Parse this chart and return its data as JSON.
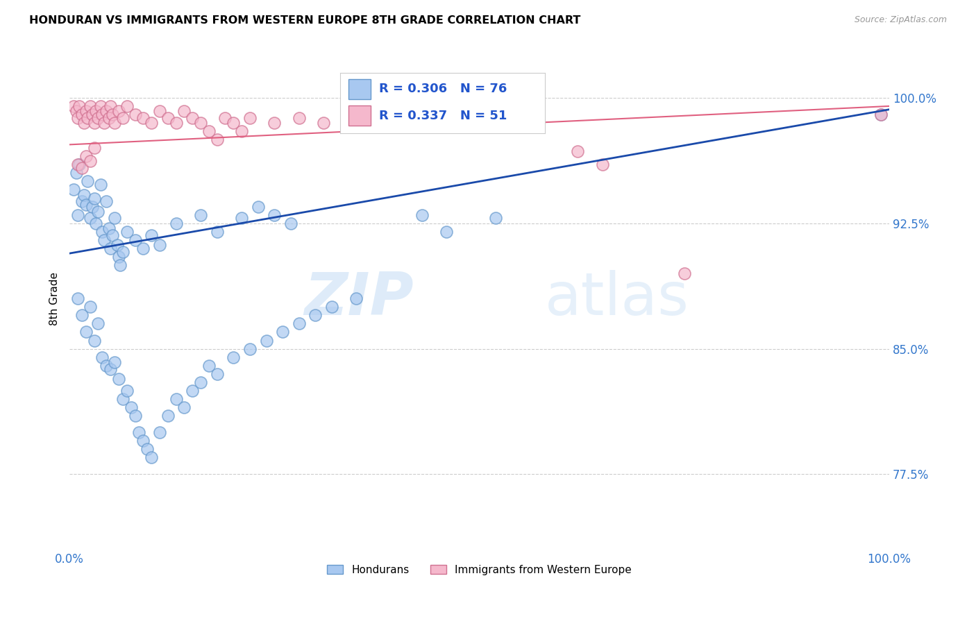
{
  "title": "HONDURAN VS IMMIGRANTS FROM WESTERN EUROPE 8TH GRADE CORRELATION CHART",
  "source": "Source: ZipAtlas.com",
  "ylabel": "8th Grade",
  "xlim": [
    0.0,
    1.0
  ],
  "ylim": [
    0.73,
    1.03
  ],
  "yticks": [
    0.775,
    0.85,
    0.925,
    1.0
  ],
  "ytick_labels": [
    "77.5%",
    "85.0%",
    "92.5%",
    "100.0%"
  ],
  "honduran_color": "#a8c8f0",
  "honduran_edge": "#6699cc",
  "western_europe_color": "#f5b8cc",
  "western_europe_edge": "#d07090",
  "blue_line_color": "#1a4aaa",
  "pink_line_color": "#e06080",
  "legend_R_blue": "R = 0.306",
  "legend_N_blue": "N = 76",
  "legend_R_pink": "R = 0.337",
  "legend_N_pink": "N = 51",
  "background_color": "#ffffff",
  "grid_color": "#cccccc",
  "watermark_zip": "ZIP",
  "watermark_atlas": "atlas",
  "honduran_x": [
    0.005,
    0.008,
    0.01,
    0.012,
    0.015,
    0.018,
    0.02,
    0.022,
    0.025,
    0.028,
    0.03,
    0.032,
    0.035,
    0.038,
    0.04,
    0.042,
    0.045,
    0.048,
    0.05,
    0.052,
    0.055,
    0.058,
    0.06,
    0.062,
    0.065,
    0.01,
    0.015,
    0.02,
    0.025,
    0.03,
    0.035,
    0.04,
    0.045,
    0.05,
    0.055,
    0.06,
    0.065,
    0.07,
    0.075,
    0.08,
    0.085,
    0.09,
    0.095,
    0.1,
    0.11,
    0.12,
    0.13,
    0.14,
    0.15,
    0.16,
    0.17,
    0.18,
    0.2,
    0.22,
    0.24,
    0.26,
    0.28,
    0.3,
    0.32,
    0.35,
    0.13,
    0.16,
    0.18,
    0.21,
    0.23,
    0.25,
    0.27,
    0.07,
    0.08,
    0.09,
    0.1,
    0.11,
    0.43,
    0.46,
    0.52,
    0.99
  ],
  "honduran_y": [
    0.945,
    0.955,
    0.93,
    0.96,
    0.938,
    0.942,
    0.936,
    0.95,
    0.928,
    0.935,
    0.94,
    0.925,
    0.932,
    0.948,
    0.92,
    0.915,
    0.938,
    0.922,
    0.91,
    0.918,
    0.928,
    0.912,
    0.905,
    0.9,
    0.908,
    0.88,
    0.87,
    0.86,
    0.875,
    0.855,
    0.865,
    0.845,
    0.84,
    0.838,
    0.842,
    0.832,
    0.82,
    0.825,
    0.815,
    0.81,
    0.8,
    0.795,
    0.79,
    0.785,
    0.8,
    0.81,
    0.82,
    0.815,
    0.825,
    0.83,
    0.84,
    0.835,
    0.845,
    0.85,
    0.855,
    0.86,
    0.865,
    0.87,
    0.875,
    0.88,
    0.925,
    0.93,
    0.92,
    0.928,
    0.935,
    0.93,
    0.925,
    0.92,
    0.915,
    0.91,
    0.918,
    0.912,
    0.93,
    0.92,
    0.928,
    0.99
  ],
  "western_europe_x": [
    0.005,
    0.008,
    0.01,
    0.012,
    0.015,
    0.018,
    0.02,
    0.022,
    0.025,
    0.028,
    0.03,
    0.032,
    0.035,
    0.038,
    0.04,
    0.042,
    0.045,
    0.048,
    0.05,
    0.052,
    0.055,
    0.06,
    0.065,
    0.07,
    0.08,
    0.09,
    0.1,
    0.11,
    0.12,
    0.13,
    0.14,
    0.15,
    0.16,
    0.17,
    0.18,
    0.19,
    0.2,
    0.21,
    0.22,
    0.25,
    0.28,
    0.31,
    0.01,
    0.015,
    0.02,
    0.025,
    0.03,
    0.62,
    0.65,
    0.99,
    0.75
  ],
  "western_europe_y": [
    0.995,
    0.992,
    0.988,
    0.995,
    0.99,
    0.985,
    0.992,
    0.988,
    0.995,
    0.99,
    0.985,
    0.992,
    0.988,
    0.995,
    0.99,
    0.985,
    0.992,
    0.988,
    0.995,
    0.99,
    0.985,
    0.992,
    0.988,
    0.995,
    0.99,
    0.988,
    0.985,
    0.992,
    0.988,
    0.985,
    0.992,
    0.988,
    0.985,
    0.98,
    0.975,
    0.988,
    0.985,
    0.98,
    0.988,
    0.985,
    0.988,
    0.985,
    0.96,
    0.958,
    0.965,
    0.962,
    0.97,
    0.968,
    0.96,
    0.99,
    0.895
  ],
  "blue_line_x0": 0.0,
  "blue_line_y0": 0.907,
  "blue_line_x1": 1.0,
  "blue_line_y1": 0.993,
  "pink_line_x0": 0.0,
  "pink_line_y0": 0.972,
  "pink_line_x1": 1.0,
  "pink_line_y1": 0.995
}
